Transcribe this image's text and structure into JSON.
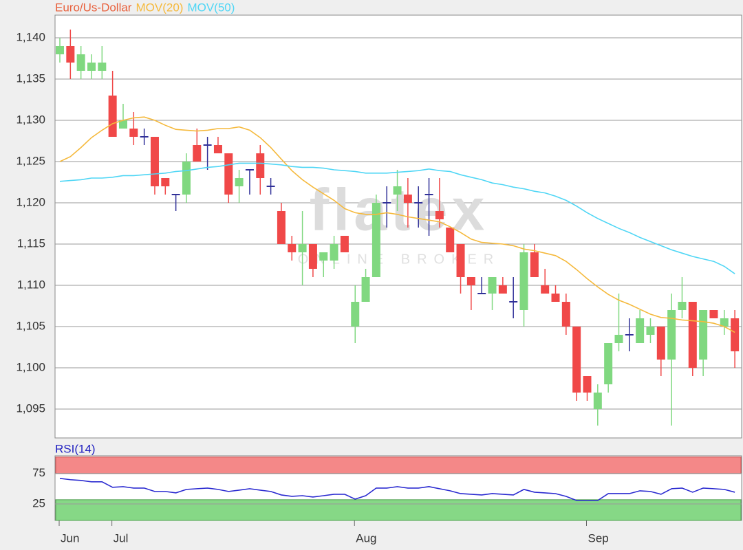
{
  "chart_data": [
    {
      "type": "candlestick",
      "name": "Euro/Us-Dollar",
      "name_color": "#e8603c",
      "watermark": "flatex",
      "watermark_sub": "ONLINE BROKER",
      "categories": [
        "Jun",
        null,
        null,
        null,
        null,
        "Jul",
        null,
        null,
        null,
        null,
        null,
        null,
        null,
        null,
        null,
        null,
        null,
        null,
        null,
        null,
        null,
        null,
        null,
        null,
        null,
        null,
        null,
        null,
        "Aug",
        null,
        null,
        null,
        null,
        null,
        null,
        null,
        null,
        null,
        null,
        null,
        null,
        null,
        null,
        null,
        null,
        null,
        null,
        null,
        null,
        null,
        "Sep",
        null,
        null,
        null,
        null,
        null,
        null,
        null,
        null,
        null,
        null,
        null,
        null,
        null,
        null
      ],
      "open": [
        1.138,
        1.139,
        1.136,
        1.136,
        1.136,
        1.133,
        1.129,
        1.129,
        1.128,
        1.128,
        1.123,
        1.121,
        1.121,
        1.127,
        1.127,
        1.127,
        1.126,
        1.122,
        1.124,
        1.126,
        1.122,
        1.119,
        1.115,
        1.114,
        1.115,
        1.113,
        1.113,
        1.116,
        1.105,
        1.108,
        1.111,
        1.12,
        1.121,
        1.121,
        1.12,
        1.121,
        1.119,
        1.117,
        1.115,
        1.111,
        1.109,
        1.109,
        1.11,
        1.108,
        1.107,
        1.114,
        1.11,
        1.109,
        1.108,
        1.105,
        1.099,
        1.095,
        1.098,
        1.103,
        1.104,
        1.103,
        1.104,
        1.105,
        1.101,
        1.107,
        1.108,
        1.101,
        1.107,
        1.105,
        1.106
      ],
      "high": [
        1.14,
        1.141,
        1.139,
        1.138,
        1.139,
        1.136,
        1.132,
        1.131,
        1.129,
        1.128,
        1.123,
        1.121,
        1.126,
        1.129,
        1.128,
        1.128,
        1.126,
        1.124,
        1.124,
        1.127,
        1.123,
        1.12,
        1.116,
        1.119,
        1.115,
        1.114,
        1.116,
        1.116,
        1.11,
        1.112,
        1.121,
        1.122,
        1.124,
        1.123,
        1.122,
        1.123,
        1.123,
        1.117,
        1.115,
        1.111,
        1.111,
        1.111,
        1.111,
        1.111,
        1.115,
        1.115,
        1.112,
        1.11,
        1.109,
        1.105,
        1.099,
        1.098,
        1.103,
        1.109,
        1.106,
        1.107,
        1.106,
        1.105,
        1.109,
        1.111,
        1.108,
        1.107,
        1.107,
        1.107,
        1.107
      ],
      "low": [
        1.137,
        1.135,
        1.135,
        1.135,
        1.135,
        1.128,
        1.129,
        1.127,
        1.127,
        1.121,
        1.121,
        1.119,
        1.12,
        1.125,
        1.124,
        1.126,
        1.12,
        1.12,
        1.121,
        1.121,
        1.121,
        1.115,
        1.113,
        1.11,
        1.111,
        1.111,
        1.112,
        1.114,
        1.103,
        1.108,
        1.111,
        1.117,
        1.119,
        1.117,
        1.117,
        1.116,
        1.117,
        1.114,
        1.109,
        1.107,
        1.109,
        1.107,
        1.109,
        1.106,
        1.105,
        1.111,
        1.109,
        1.108,
        1.104,
        1.096,
        1.096,
        1.093,
        1.097,
        1.102,
        1.102,
        1.103,
        1.103,
        1.099,
        1.093,
        1.106,
        1.099,
        1.099,
        1.106,
        1.104,
        1.1
      ],
      "close": [
        1.139,
        1.137,
        1.138,
        1.137,
        1.137,
        1.128,
        1.13,
        1.128,
        1.128,
        1.122,
        1.122,
        1.121,
        1.125,
        1.125,
        1.127,
        1.126,
        1.121,
        1.123,
        1.124,
        1.123,
        1.122,
        1.115,
        1.114,
        1.115,
        1.112,
        1.114,
        1.115,
        1.114,
        1.108,
        1.111,
        1.12,
        1.12,
        1.122,
        1.12,
        1.12,
        1.121,
        1.118,
        1.114,
        1.111,
        1.11,
        1.109,
        1.111,
        1.109,
        1.108,
        1.114,
        1.111,
        1.109,
        1.108,
        1.105,
        1.097,
        1.097,
        1.097,
        1.103,
        1.104,
        1.104,
        1.106,
        1.105,
        1.101,
        1.107,
        1.108,
        1.1,
        1.107,
        1.106,
        1.106,
        1.102
      ],
      "up_color": "#80d880",
      "down_color": "#f04848",
      "doji_color": "#303098",
      "series": [
        {
          "name": "MOV(20)",
          "color": "#f5b93c",
          "values": [
            1.125,
            1.1256,
            1.1267,
            1.1279,
            1.1288,
            1.1296,
            1.13,
            1.1303,
            1.1304,
            1.13,
            1.1294,
            1.1289,
            1.1288,
            1.1287,
            1.1288,
            1.129,
            1.129,
            1.1292,
            1.1288,
            1.1279,
            1.1267,
            1.1253,
            1.1239,
            1.1228,
            1.1219,
            1.1211,
            1.1203,
            1.1193,
            1.1188,
            1.1186,
            1.1186,
            1.1188,
            1.1186,
            1.1183,
            1.1181,
            1.1179,
            1.1177,
            1.1171,
            1.1164,
            1.1156,
            1.1152,
            1.1151,
            1.115,
            1.1148,
            1.1144,
            1.1142,
            1.1139,
            1.1136,
            1.1129,
            1.1119,
            1.1108,
            1.1098,
            1.1089,
            1.1082,
            1.1077,
            1.1071,
            1.1065,
            1.1061,
            1.106,
            1.1058,
            1.1057,
            1.1056,
            1.1054,
            1.105,
            1.1043
          ]
        },
        {
          "name": "MOV(50)",
          "color": "#4fd6f5",
          "values": [
            1.1226,
            1.1227,
            1.1228,
            1.123,
            1.123,
            1.1231,
            1.1233,
            1.1233,
            1.1234,
            1.1235,
            1.1236,
            1.1238,
            1.1239,
            1.1241,
            1.1243,
            1.1244,
            1.1246,
            1.1248,
            1.1248,
            1.1248,
            1.1247,
            1.1246,
            1.1244,
            1.1243,
            1.1243,
            1.1242,
            1.124,
            1.1239,
            1.1238,
            1.1236,
            1.1236,
            1.1236,
            1.1237,
            1.1238,
            1.1239,
            1.1241,
            1.1239,
            1.1238,
            1.1234,
            1.1231,
            1.1228,
            1.1224,
            1.1222,
            1.1219,
            1.1217,
            1.1214,
            1.1212,
            1.1208,
            1.1203,
            1.1196,
            1.1188,
            1.1181,
            1.1175,
            1.1169,
            1.1164,
            1.1158,
            1.1153,
            1.1148,
            1.1143,
            1.1139,
            1.1135,
            1.1132,
            1.1129,
            1.1123,
            1.1114
          ]
        }
      ],
      "ylim": [
        1.0915,
        1.14275
      ],
      "yticks": [
        {
          "value": 1.095,
          "label": "1,095"
        },
        {
          "value": 1.1,
          "label": "1,100"
        },
        {
          "value": 1.105,
          "label": "1,105"
        },
        {
          "value": 1.11,
          "label": "1,110"
        },
        {
          "value": 1.115,
          "label": "1,115"
        },
        {
          "value": 1.12,
          "label": "1,120"
        },
        {
          "value": 1.125,
          "label": "1,125"
        },
        {
          "value": 1.13,
          "label": "1,130"
        },
        {
          "value": 1.135,
          "label": "1,135"
        },
        {
          "value": 1.14,
          "label": "1,140"
        }
      ],
      "grid": true
    },
    {
      "type": "line",
      "title": "RSI(14)",
      "color": "#2a2ad0",
      "values": [
        67.0,
        64.8,
        63.6,
        61.4,
        61.4,
        52.3,
        53.4,
        51.1,
        51.1,
        45.5,
        45.5,
        43.2,
        48.9,
        50.0,
        51.1,
        48.9,
        45.5,
        47.7,
        50.0,
        47.7,
        45.5,
        39.8,
        37.5,
        38.6,
        36.4,
        38.6,
        40.9,
        40.9,
        33.0,
        38.6,
        51.1,
        51.1,
        53.4,
        51.1,
        51.1,
        53.4,
        50.0,
        46.6,
        42.0,
        40.9,
        39.8,
        42.0,
        40.9,
        39.8,
        48.9,
        44.3,
        43.2,
        42.0,
        37.5,
        30.7,
        30.7,
        30.7,
        42.0,
        42.0,
        42.0,
        46.6,
        45.5,
        40.9,
        50.0,
        51.1,
        44.3,
        51.1,
        50.0,
        48.9,
        44.3
      ],
      "ylim": [
        -2,
        104
      ],
      "yticks": [
        75,
        25
      ],
      "grid": true,
      "zones": [
        {
          "from": 75,
          "to": 102,
          "color": "#f48888"
        },
        {
          "from": -2,
          "to": 32,
          "color": "#86d886"
        }
      ]
    }
  ]
}
